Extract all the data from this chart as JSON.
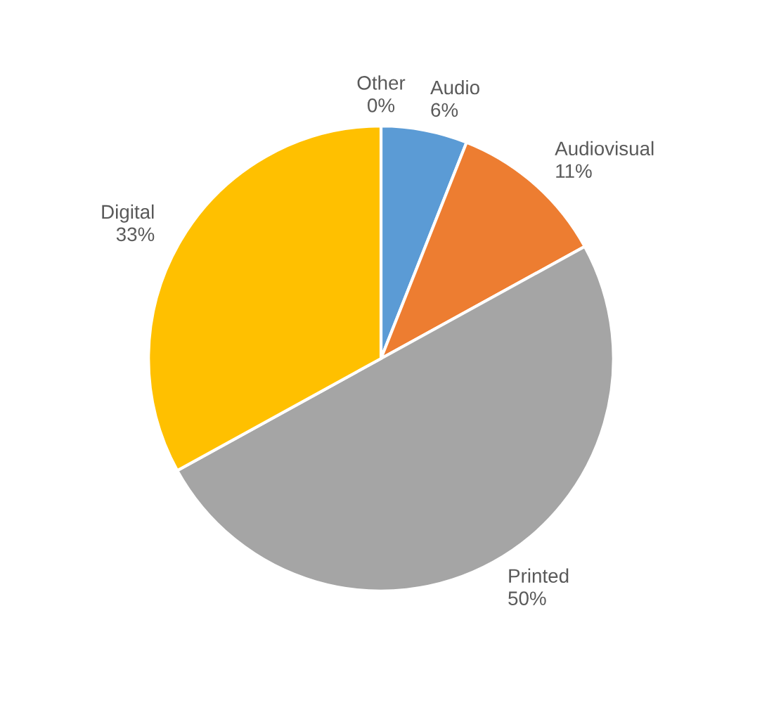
{
  "chart_data": {
    "type": "pie",
    "categories": [
      "Other",
      "Audio",
      "Audiovisual",
      "Printed",
      "Digital"
    ],
    "values": [
      0,
      6,
      11,
      50,
      33
    ],
    "value_labels": [
      "0%",
      "6%",
      "11%",
      "50%",
      "33%"
    ],
    "colors": [
      "#4472c4",
      "#5b9bd5",
      "#ed7d31",
      "#a5a5a5",
      "#ffc000"
    ],
    "legend": false
  }
}
